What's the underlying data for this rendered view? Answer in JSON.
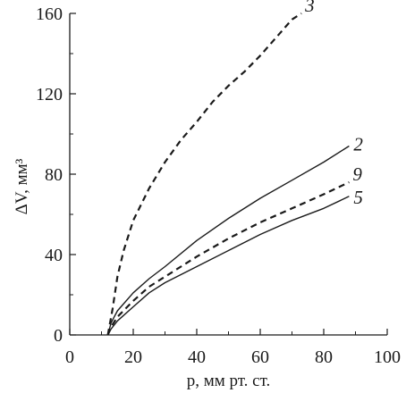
{
  "chart_data": {
    "type": "line",
    "xlabel": "p, мм рт. ст.",
    "ylabel": "ΔV, мм³",
    "xlim": [
      0,
      100
    ],
    "ylim": [
      0,
      160
    ],
    "xticks": [
      0,
      20,
      40,
      60,
      80,
      100
    ],
    "yticks": [
      0,
      40,
      80,
      120,
      160
    ],
    "grid": false,
    "series": [
      {
        "name": "3",
        "style": "dashed",
        "x": [
          12,
          13.5,
          15,
          17,
          20,
          25,
          30,
          35,
          40,
          45,
          50,
          55,
          60,
          65,
          70,
          73
        ],
        "y": [
          0,
          13,
          29,
          42,
          57,
          73,
          86,
          97,
          106,
          116,
          124,
          131,
          139,
          148,
          157,
          160
        ]
      },
      {
        "name": "2",
        "style": "solid",
        "x": [
          12,
          13,
          15,
          20,
          25,
          30,
          40,
          50,
          60,
          70,
          80,
          88
        ],
        "y": [
          0,
          6,
          12,
          21,
          28,
          34,
          47,
          58,
          68,
          77,
          86,
          94
        ]
      },
      {
        "name": "9",
        "style": "dashed",
        "x": [
          12,
          13,
          15,
          20,
          25,
          30,
          40,
          50,
          60,
          70,
          80,
          88
        ],
        "y": [
          0,
          4,
          9,
          17,
          24,
          29,
          39,
          48,
          56,
          63,
          70,
          76
        ]
      },
      {
        "name": "5",
        "style": "solid",
        "x": [
          12,
          13,
          15,
          20,
          25,
          30,
          40,
          50,
          60,
          70,
          80,
          88
        ],
        "y": [
          0,
          3,
          7,
          14,
          21,
          26,
          34,
          42,
          50,
          57,
          63,
          69
        ]
      }
    ]
  }
}
